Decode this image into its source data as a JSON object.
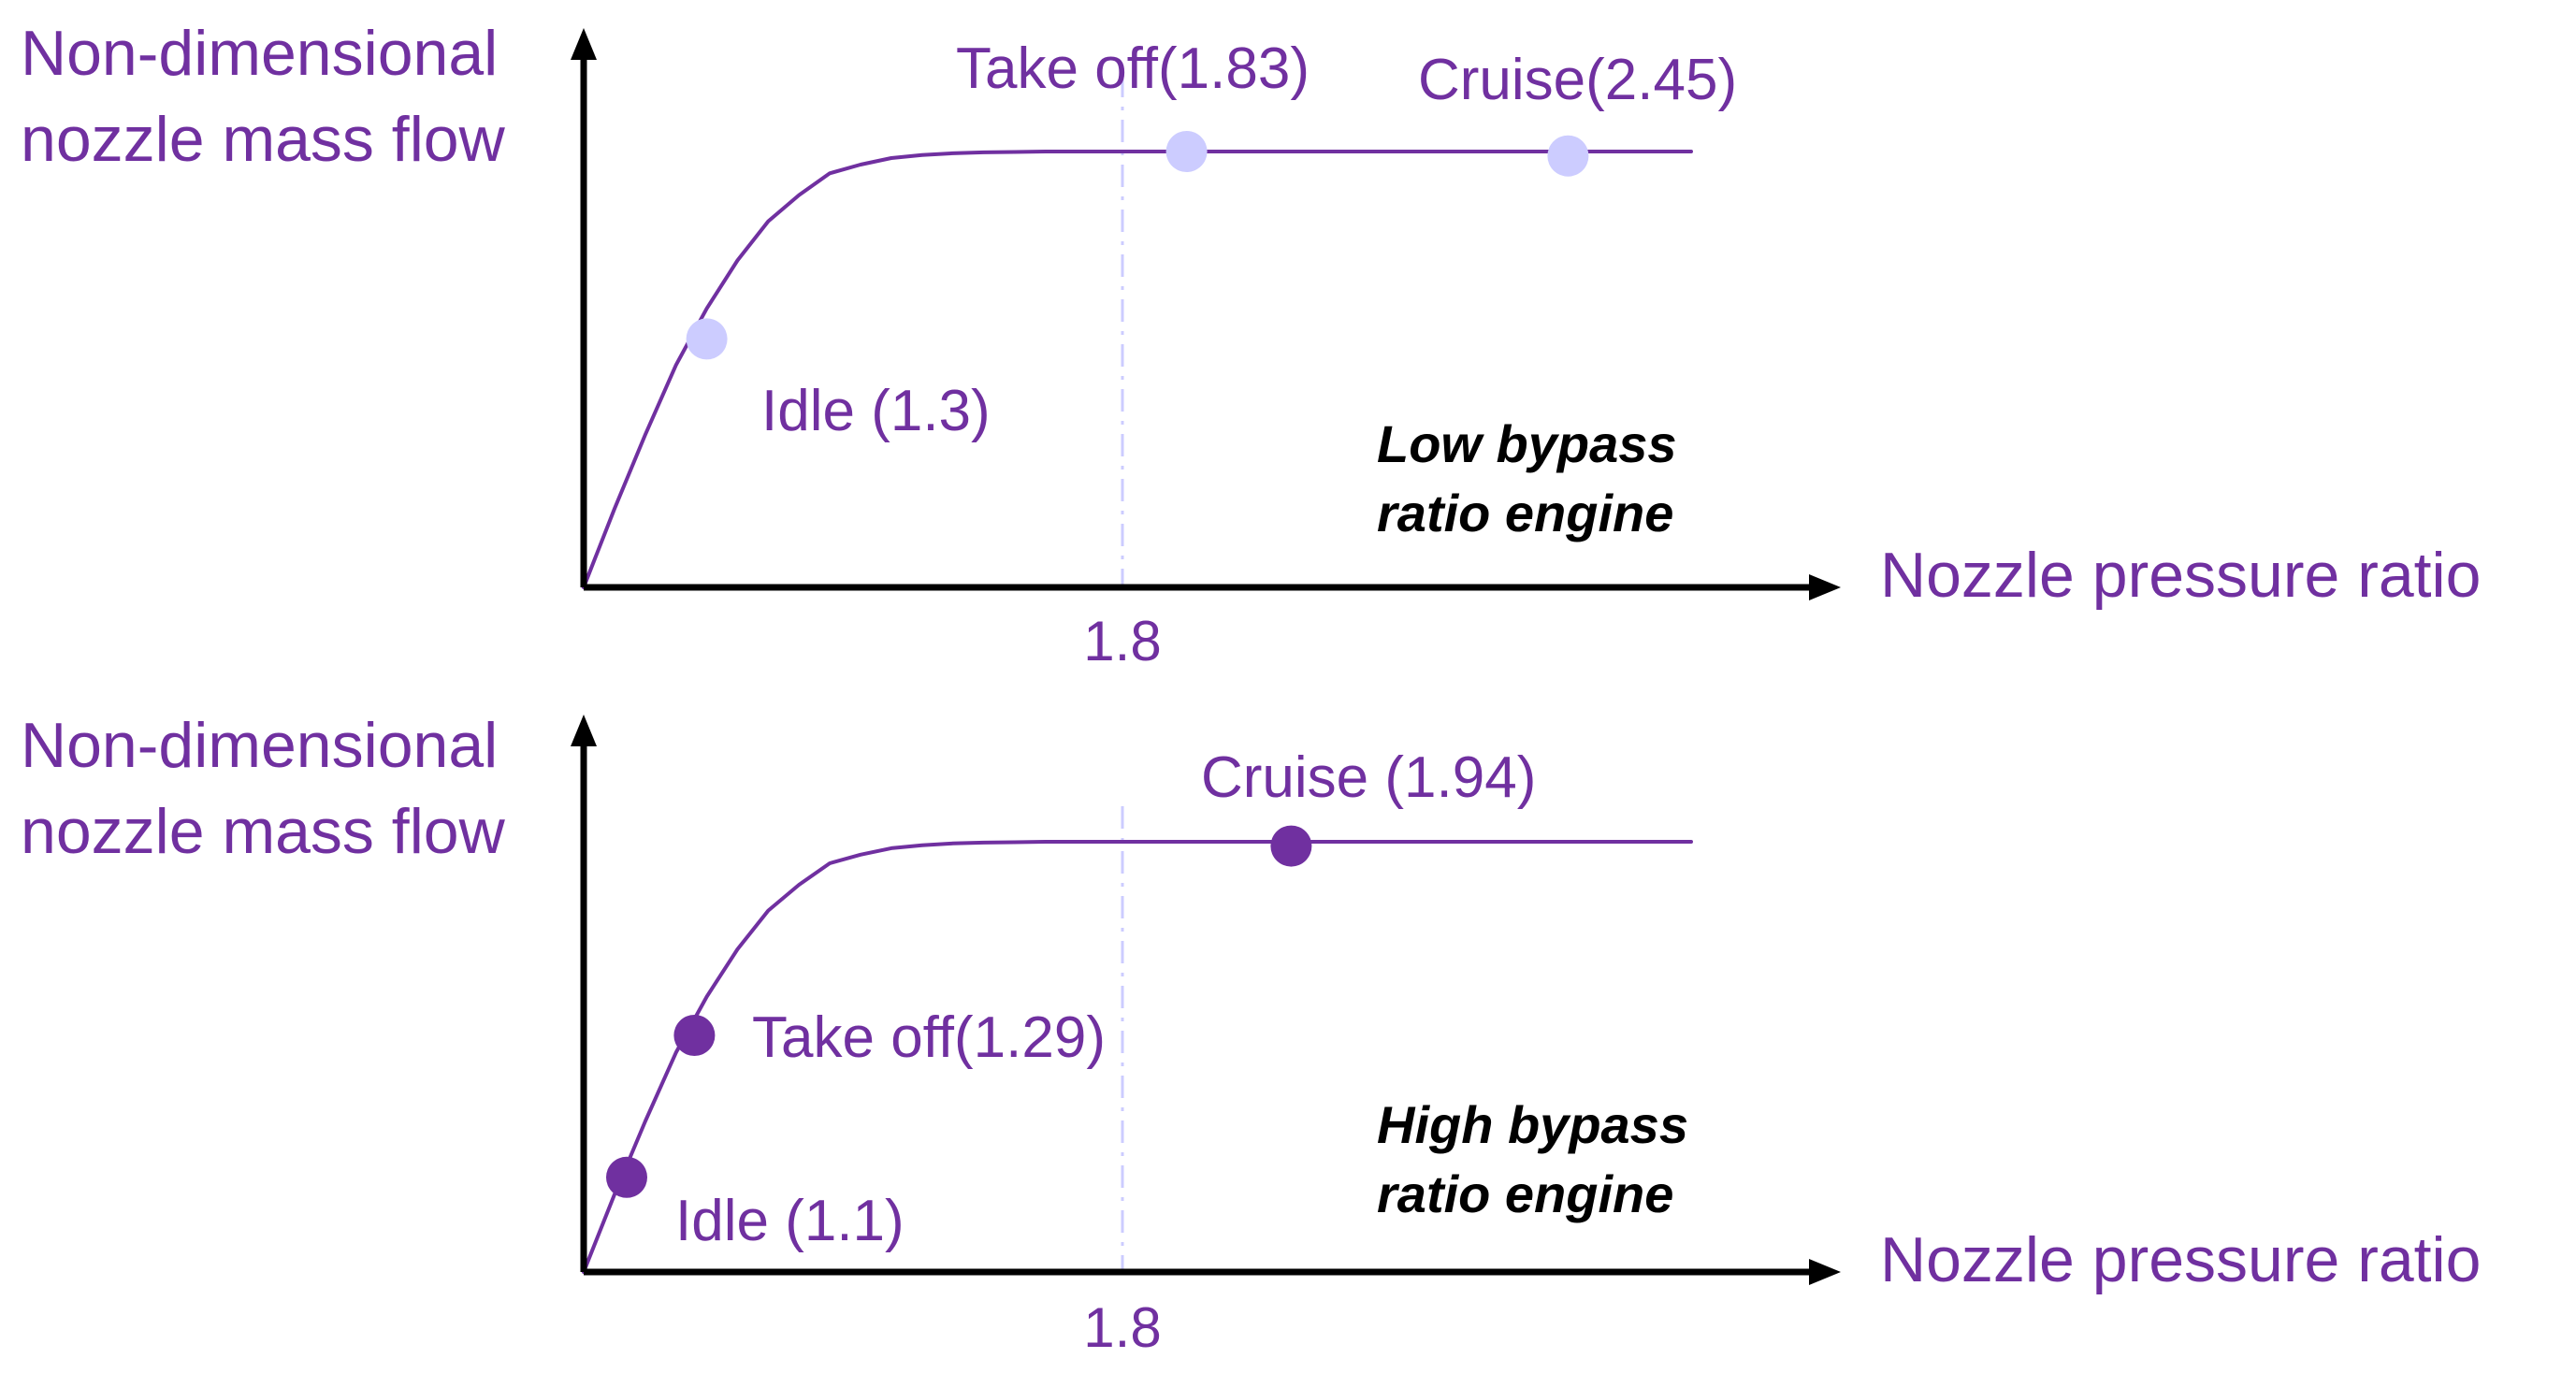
{
  "colors": {
    "text": "#7030A0",
    "curve": "#7030A0",
    "axis": "#000000",
    "marker_low_bypass": "#CCCCFF",
    "marker_high_bypass": "#7030A0",
    "reference_line": "#CCCCFF",
    "engine_label": "#000000"
  },
  "chart_data": [
    {
      "type": "line",
      "engine_label_line1": "Low bypass",
      "engine_label_line2": "ratio engine",
      "ylabel_line1": "Non-dimensional",
      "ylabel_line2": "nozzle mass flow",
      "xlabel": "Nozzle pressure ratio",
      "x_tick_labels": [
        "1.8"
      ],
      "reference_line_x": 1.8,
      "xlim": [
        1.0,
        2.8
      ],
      "ylim": [
        0,
        1.15
      ],
      "grid": false,
      "legend": "none",
      "curve": {
        "x": [
          1.0,
          1.05,
          1.1,
          1.15,
          1.2,
          1.25,
          1.3,
          1.35,
          1.4,
          1.45,
          1.5,
          1.55,
          1.6,
          1.65,
          1.7,
          1.75,
          1.8,
          1.85,
          1.9,
          2.0,
          2.2,
          2.4,
          2.6,
          2.8
        ],
        "y": [
          0.0,
          0.18,
          0.35,
          0.51,
          0.64,
          0.75,
          0.84,
          0.9,
          0.95,
          0.97,
          0.985,
          0.992,
          0.996,
          0.998,
          0.999,
          1.0,
          1.0,
          1.0,
          1.0,
          1.0,
          1.0,
          1.0,
          1.0,
          1.0
        ]
      },
      "points": [
        {
          "label": "Idle (1.3)",
          "x": 1.2,
          "y": 0.57
        },
        {
          "label": "Take off(1.83)",
          "x": 1.98,
          "y": 1.0
        },
        {
          "label": "Cruise(2.45)",
          "x": 2.6,
          "y": 0.99
        }
      ]
    },
    {
      "type": "line",
      "engine_label_line1": "High bypass",
      "engine_label_line2": "ratio engine",
      "ylabel_line1": "Non-dimensional",
      "ylabel_line2": "nozzle mass flow",
      "xlabel": "Nozzle pressure ratio",
      "x_tick_labels": [
        "1.8"
      ],
      "reference_line_x": 1.8,
      "xlim": [
        1.0,
        2.8
      ],
      "ylim": [
        0,
        1.15
      ],
      "grid": false,
      "legend": "none",
      "curve": {
        "x": [
          1.0,
          1.05,
          1.1,
          1.15,
          1.2,
          1.25,
          1.3,
          1.35,
          1.4,
          1.45,
          1.5,
          1.55,
          1.6,
          1.65,
          1.7,
          1.75,
          1.8,
          1.85,
          1.9,
          2.0,
          2.2,
          2.4,
          2.6,
          2.8
        ],
        "y": [
          0.0,
          0.18,
          0.35,
          0.51,
          0.64,
          0.75,
          0.84,
          0.9,
          0.95,
          0.97,
          0.985,
          0.992,
          0.996,
          0.998,
          0.999,
          1.0,
          1.0,
          1.0,
          1.0,
          1.0,
          1.0,
          1.0,
          1.0,
          1.0
        ]
      },
      "points": [
        {
          "label": "Idle (1.1)",
          "x": 1.07,
          "y": 0.22
        },
        {
          "label": "Take off(1.29)",
          "x": 1.18,
          "y": 0.55
        },
        {
          "label": "Cruise (1.94)",
          "x": 2.15,
          "y": 0.99
        }
      ]
    }
  ]
}
